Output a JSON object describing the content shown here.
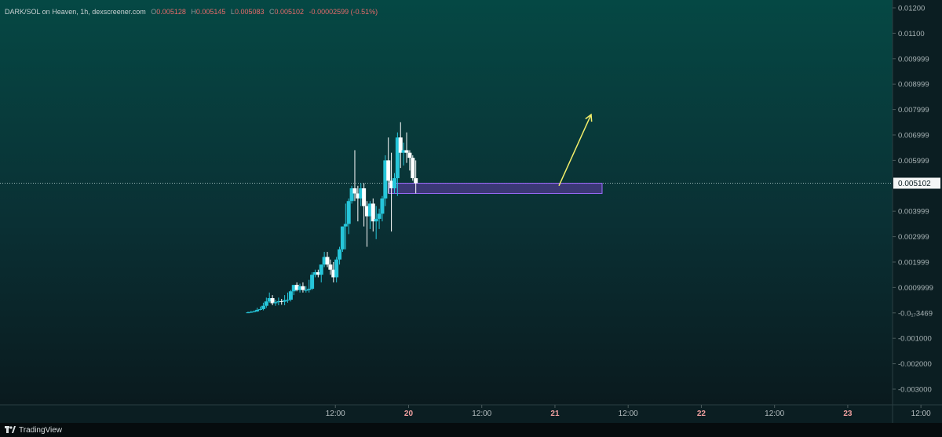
{
  "legend": {
    "symbol": "DARK/SOL on Heaven, 1h, dexscreener.com",
    "o_key": "O",
    "o_val": "0.005128",
    "h_key": "H",
    "h_val": "0.005145",
    "l_key": "L",
    "l_val": "0.005083",
    "c_key": "C",
    "c_val": "0.005102",
    "change": "-0.00002599 (-0.51%)"
  },
  "colors": {
    "up": "#26c6da",
    "down": "#ffffff",
    "zone_fill": "#7b3fc4",
    "zone_stroke": "#9f6cff",
    "arrow": "#f2ee6a",
    "price_line": "#9ab8b8"
  },
  "watermark": {
    "logo": "tradingview-logo-icon",
    "text": "TradingView"
  },
  "chart_data": {
    "type": "candlestick",
    "price_axis": {
      "range": [
        -0.0035,
        0.0122
      ],
      "ticks": [
        {
          "value": 0.012,
          "label": "0.01200"
        },
        {
          "value": 0.011,
          "label": "0.01100"
        },
        {
          "value": 0.01,
          "label": "0.009999"
        },
        {
          "value": 0.009,
          "label": "0.008999"
        },
        {
          "value": 0.008,
          "label": "0.007999"
        },
        {
          "value": 0.007,
          "label": "0.006999"
        },
        {
          "value": 0.006,
          "label": "0.005999"
        },
        {
          "value": 0.004,
          "label": "0.003999"
        },
        {
          "value": 0.003,
          "label": "0.002999"
        },
        {
          "value": 0.002,
          "label": "0.001999"
        },
        {
          "value": 0.001,
          "label": "0.0009999"
        },
        {
          "value": 0.0,
          "label": "-0.0₁₇3469"
        },
        {
          "value": -0.001,
          "label": "-0.001000"
        },
        {
          "value": -0.002,
          "label": "-0.002000"
        },
        {
          "value": -0.003,
          "label": "-0.003000"
        }
      ]
    },
    "time_axis": {
      "ticks": [
        {
          "label": "12:00",
          "day": false
        },
        {
          "label": "20",
          "day": true
        },
        {
          "label": "12:00",
          "day": false
        },
        {
          "label": "21",
          "day": true
        },
        {
          "label": "12:00",
          "day": false
        },
        {
          "label": "22",
          "day": true
        },
        {
          "label": "12:00",
          "day": false
        },
        {
          "label": "23",
          "day": true
        },
        {
          "label": "12:00",
          "day": false
        }
      ],
      "start_hour": 0,
      "tick_hours": [
        12,
        24,
        36,
        48,
        60,
        72,
        84,
        96,
        108
      ]
    },
    "last_price": {
      "value": 0.005102,
      "label": "0.005102"
    },
    "zone": {
      "start_hour": 14.5,
      "end_hour": 32.5,
      "low": 0.0047,
      "high": 0.0051
    },
    "arrow": {
      "from": {
        "hour": 37.5,
        "price": 0.005
      },
      "to": {
        "hour": 40.8,
        "price": 0.0078
      }
    },
    "candles": [
      {
        "h": 0.0,
        "o": 2e-05,
        "hi": 5e-05,
        "lo": 0.0,
        "c": 2e-05
      },
      {
        "h": 0.5,
        "o": 2e-05,
        "hi": 8e-05,
        "lo": 0.0,
        "c": 4e-05
      },
      {
        "h": 1.0,
        "o": 4e-05,
        "hi": 0.0001,
        "lo": 2e-05,
        "c": 6e-05
      },
      {
        "h": 1.5,
        "o": 6e-05,
        "hi": 0.0002,
        "lo": 4e-05,
        "c": 0.00012
      },
      {
        "h": 2.0,
        "o": 0.00012,
        "hi": 0.00025,
        "lo": 0.0001,
        "c": 0.00015
      },
      {
        "h": 2.5,
        "o": 0.00015,
        "hi": 0.0004,
        "lo": 0.0001,
        "c": 0.00028
      },
      {
        "h": 3.0,
        "o": 0.00028,
        "hi": 0.0006,
        "lo": 0.0002,
        "c": 0.00045
      },
      {
        "h": 3.5,
        "o": 0.00045,
        "hi": 0.0008,
        "lo": 0.0004,
        "c": 0.00058
      },
      {
        "h": 4.0,
        "o": 0.00058,
        "hi": 0.0007,
        "lo": 0.0003,
        "c": 0.00038
      },
      {
        "h": 4.5,
        "o": 0.00038,
        "hi": 0.00052,
        "lo": 0.00028,
        "c": 0.00042
      },
      {
        "h": 5.0,
        "o": 0.00042,
        "hi": 0.0006,
        "lo": 0.0003,
        "c": 0.00046
      },
      {
        "h": 5.5,
        "o": 0.00046,
        "hi": 0.00055,
        "lo": 0.00032,
        "c": 0.00044
      },
      {
        "h": 6.0,
        "o": 0.00044,
        "hi": 0.0007,
        "lo": 0.0003,
        "c": 0.0005
      },
      {
        "h": 6.5,
        "o": 0.0005,
        "hi": 0.0008,
        "lo": 0.0004,
        "c": 0.00052
      },
      {
        "h": 7.0,
        "o": 0.00052,
        "hi": 0.0009,
        "lo": 0.00045,
        "c": 0.00085
      },
      {
        "h": 7.5,
        "o": 0.00085,
        "hi": 0.0011,
        "lo": 0.0007,
        "c": 0.0011
      },
      {
        "h": 8.0,
        "o": 0.0011,
        "hi": 0.0012,
        "lo": 0.00085,
        "c": 0.0009
      },
      {
        "h": 8.5,
        "o": 0.0009,
        "hi": 0.00115,
        "lo": 0.0008,
        "c": 0.00105
      },
      {
        "h": 9.0,
        "o": 0.00105,
        "hi": 0.0012,
        "lo": 0.0008,
        "c": 0.0009
      },
      {
        "h": 9.5,
        "o": 0.0009,
        "hi": 0.00105,
        "lo": 0.0008,
        "c": 0.0009
      },
      {
        "h": 10.0,
        "o": 0.0009,
        "hi": 0.0013,
        "lo": 0.0008,
        "c": 0.00095
      },
      {
        "h": 10.5,
        "o": 0.00095,
        "hi": 0.0016,
        "lo": 0.0009,
        "c": 0.0015
      },
      {
        "h": 11.0,
        "o": 0.0015,
        "hi": 0.0017,
        "lo": 0.0014,
        "c": 0.0016
      },
      {
        "h": 11.5,
        "o": 0.0016,
        "hi": 0.0017,
        "lo": 0.0014,
        "c": 0.0015
      },
      {
        "h": 12.0,
        "o": 0.0015,
        "hi": 0.0019,
        "lo": 0.0012,
        "c": 0.0019
      },
      {
        "h": 12.5,
        "o": 0.0019,
        "hi": 0.0024,
        "lo": 0.0018,
        "c": 0.0022
      },
      {
        "h": 13.0,
        "o": 0.0022,
        "hi": 0.0024,
        "lo": 0.0018,
        "c": 0.0019
      },
      {
        "h": 13.5,
        "o": 0.0019,
        "hi": 0.0021,
        "lo": 0.0015,
        "c": 0.0017
      },
      {
        "h": 14.0,
        "o": 0.0017,
        "hi": 0.002,
        "lo": 0.0012,
        "c": 0.0014
      },
      {
        "h": 14.5,
        "o": 0.0014,
        "hi": 0.0022,
        "lo": 0.0012,
        "c": 0.0021
      },
      {
        "h": 15.0,
        "o": 0.0021,
        "hi": 0.0026,
        "lo": 0.0019,
        "c": 0.0025
      },
      {
        "h": 15.5,
        "o": 0.0025,
        "hi": 0.0034,
        "lo": 0.0024,
        "c": 0.0034
      },
      {
        "h": 16.0,
        "o": 0.0034,
        "hi": 0.0043,
        "lo": 0.0025,
        "c": 0.0035
      },
      {
        "h": 16.5,
        "o": 0.0035,
        "hi": 0.0045,
        "lo": 0.0031,
        "c": 0.0044
      },
      {
        "h": 17.0,
        "o": 0.0044,
        "hi": 0.005,
        "lo": 0.0043,
        "c": 0.0049
      },
      {
        "h": 17.5,
        "o": 0.0049,
        "hi": 0.0064,
        "lo": 0.0044,
        "c": 0.0047
      },
      {
        "h": 18.0,
        "o": 0.0047,
        "hi": 0.005,
        "lo": 0.0036,
        "c": 0.0045
      },
      {
        "h": 18.5,
        "o": 0.0045,
        "hi": 0.0051,
        "lo": 0.0042,
        "c": 0.0049
      },
      {
        "h": 19.0,
        "o": 0.0049,
        "hi": 0.0051,
        "lo": 0.0034,
        "c": 0.0042
      },
      {
        "h": 19.5,
        "o": 0.0042,
        "hi": 0.0044,
        "lo": 0.0026,
        "c": 0.0038
      },
      {
        "h": 20.0,
        "o": 0.0038,
        "hi": 0.0044,
        "lo": 0.0033,
        "c": 0.0043
      },
      {
        "h": 20.5,
        "o": 0.0043,
        "hi": 0.0045,
        "lo": 0.0032,
        "c": 0.0036
      },
      {
        "h": 21.0,
        "o": 0.0036,
        "hi": 0.0042,
        "lo": 0.0029,
        "c": 0.0037
      },
      {
        "h": 21.5,
        "o": 0.0037,
        "hi": 0.0041,
        "lo": 0.0033,
        "c": 0.0039
      },
      {
        "h": 22.0,
        "o": 0.0039,
        "hi": 0.0046,
        "lo": 0.0036,
        "c": 0.0045
      },
      {
        "h": 22.5,
        "o": 0.0045,
        "hi": 0.0062,
        "lo": 0.0042,
        "c": 0.006
      },
      {
        "h": 23.0,
        "o": 0.006,
        "hi": 0.0069,
        "lo": 0.0047,
        "c": 0.0052
      },
      {
        "h": 23.5,
        "o": 0.0052,
        "hi": 0.0063,
        "lo": 0.0032,
        "c": 0.0049
      },
      {
        "h": 24.0,
        "o": 0.0049,
        "hi": 0.0055,
        "lo": 0.0047,
        "c": 0.0053
      },
      {
        "h": 24.5,
        "o": 0.0053,
        "hi": 0.0071,
        "lo": 0.0046,
        "c": 0.0069
      },
      {
        "h": 25.0,
        "o": 0.0069,
        "hi": 0.0075,
        "lo": 0.0057,
        "c": 0.0063
      },
      {
        "h": 25.5,
        "o": 0.0063,
        "hi": 0.0067,
        "lo": 0.0058,
        "c": 0.0064
      },
      {
        "h": 26.0,
        "o": 0.0064,
        "hi": 0.0071,
        "lo": 0.0059,
        "c": 0.0063
      },
      {
        "h": 26.5,
        "o": 0.0063,
        "hi": 0.0064,
        "lo": 0.0056,
        "c": 0.0061
      },
      {
        "h": 27.0,
        "o": 0.0061,
        "hi": 0.0062,
        "lo": 0.0052,
        "c": 0.0053
      },
      {
        "h": 27.5,
        "o": 0.0053,
        "hi": 0.006,
        "lo": 0.0047,
        "c": 0.0051
      }
    ]
  }
}
